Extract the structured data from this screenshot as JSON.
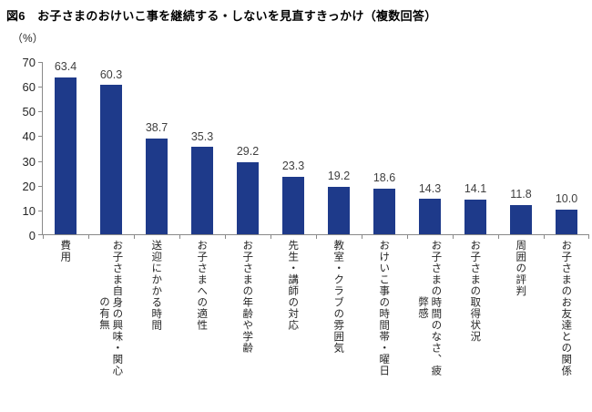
{
  "figure": {
    "title": "図6　お子さまのおけいこ事を継続する・しないを見直すきっかけ（複数回答）",
    "unit_label": "（%）"
  },
  "chart_data": {
    "type": "bar",
    "title": "図6　お子さまのおけいこ事を継続する・しないを見直すきっかけ（複数回答）",
    "xlabel": "",
    "ylabel": "（%）",
    "ylim": [
      0,
      70
    ],
    "yticks": [
      0,
      10,
      20,
      30,
      40,
      50,
      60,
      70
    ],
    "grid": false,
    "legend": false,
    "data_labels": true,
    "colors": {
      "bar": "#1e3a8a",
      "value_label": "#3f3f3f",
      "axis_line": "#898989",
      "text": "#262626"
    },
    "categories": [
      "費用",
      "お子さま自身の興味・関心の有無",
      "送迎にかかる時間",
      "お子さまへの適性",
      "お子さまの年齢や学齢",
      "先生・講師の対応",
      "教室・クラブの雰囲気",
      "おけいこ事の時間帯・曜日",
      "お子さまの時間のなさ、疲弊感",
      "お子さまの取得状況",
      "周囲の評判",
      "お子さまのお友達との関係"
    ],
    "categories_display_lines": [
      [
        "費用"
      ],
      [
        "お子さま自身の興味・関心",
        "の有無"
      ],
      [
        "送迎にかかる時間"
      ],
      [
        "お子さまへの適性"
      ],
      [
        "お子さまの年齢や学齢"
      ],
      [
        "先生・講師の対応"
      ],
      [
        "教室・クラブの雰囲気"
      ],
      [
        "おけいこ事の時間帯・曜日"
      ],
      [
        "お子さまの時間のなさ、疲",
        "弊感"
      ],
      [
        "お子さまの取得状況"
      ],
      [
        "周囲の評判"
      ],
      [
        "お子さまのお友達との関係"
      ]
    ],
    "values": [
      63.4,
      60.3,
      38.7,
      35.3,
      29.2,
      23.3,
      19.2,
      18.6,
      14.3,
      14.1,
      11.8,
      10.0
    ]
  }
}
